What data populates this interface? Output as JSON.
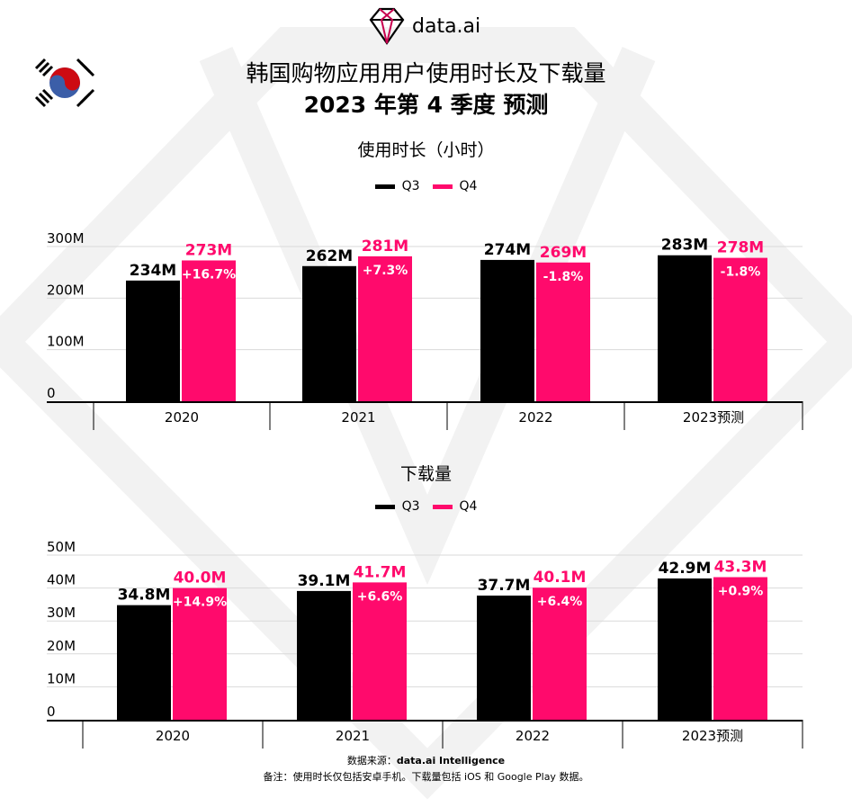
{
  "logo": {
    "text": "data.ai"
  },
  "flag": {
    "name": "south-korea-flag"
  },
  "title": "韩国购物应用用户使用时长及下载量",
  "subtitle": "2023 年第 4 季度 预测",
  "colors": {
    "q3": "#000000",
    "q4": "#FF0A6C",
    "grid": "#d9d9d9",
    "watermark": "#f2f2f2"
  },
  "chart_data": [
    {
      "type": "bar",
      "title": "使用时长（小时）",
      "categories": [
        "2020",
        "2021",
        "2022",
        "2023预测"
      ],
      "series": [
        {
          "name": "Q3",
          "values": [
            234,
            262,
            274,
            283
          ],
          "labels": [
            "234M",
            "262M",
            "274M",
            "283M"
          ]
        },
        {
          "name": "Q4",
          "values": [
            273,
            281,
            269,
            278
          ],
          "labels": [
            "273M",
            "281M",
            "269M",
            "278M"
          ]
        }
      ],
      "growth_labels": [
        "+16.7%",
        "+7.3%",
        "-1.8%",
        "-1.8%"
      ],
      "yticks": [
        "0",
        "100M",
        "200M",
        "300M"
      ],
      "ylim": [
        0,
        300
      ],
      "unit": "M",
      "grid": true,
      "legend": "top-center"
    },
    {
      "type": "bar",
      "title": "下载量",
      "categories": [
        "2020",
        "2021",
        "2022",
        "2023预测"
      ],
      "series": [
        {
          "name": "Q3",
          "values": [
            34.8,
            39.1,
            37.7,
            42.9
          ],
          "labels": [
            "34.8M",
            "39.1M",
            "37.7M",
            "42.9M"
          ]
        },
        {
          "name": "Q4",
          "values": [
            40.0,
            41.7,
            40.1,
            43.3
          ],
          "labels": [
            "40.0M",
            "41.7M",
            "40.1M",
            "43.3M"
          ]
        }
      ],
      "growth_labels": [
        "+14.9%",
        "+6.6%",
        "+6.4%",
        "+0.9%"
      ],
      "yticks": [
        "0",
        "10M",
        "20M",
        "30M",
        "40M",
        "50M"
      ],
      "ylim": [
        0,
        50
      ],
      "unit": "M",
      "grid": true,
      "legend": "top-center"
    }
  ],
  "footer": {
    "source_label": "数据来源：",
    "source_value": "data.ai Intelligence",
    "note": "备注：使用时长仅包括安卓手机。下载量包括 iOS 和 Google Play 数据。"
  }
}
